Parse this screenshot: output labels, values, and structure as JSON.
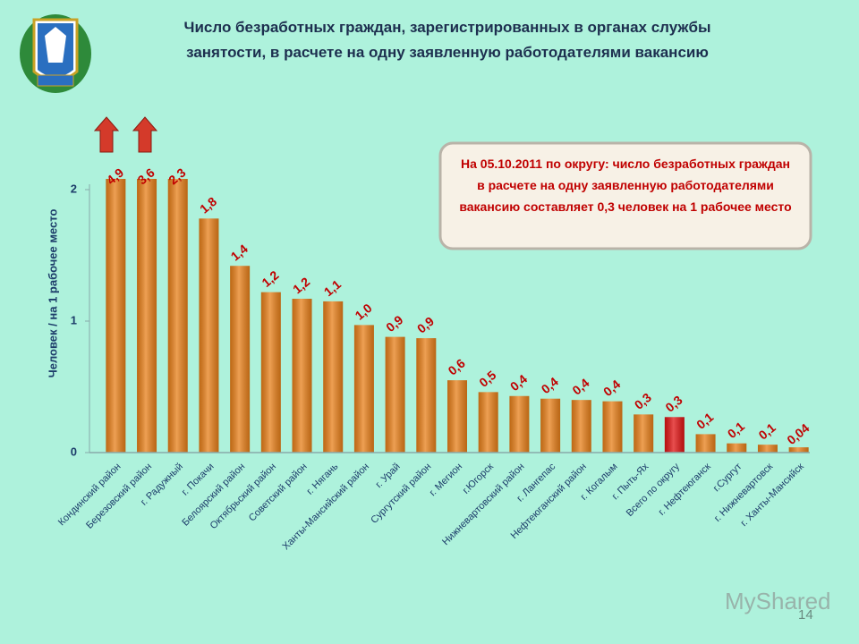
{
  "chart_data": {
    "type": "bar",
    "title": "Число безработных  граждан, зарегистрированных в органах службы занятости, в расчете на одну заявленную работодателями вакансию",
    "y_label": "Человек / на 1 рабочее место",
    "annotation": "На 05.10.2011 по округу: число безработных граждан в расчете на одну заявленную работодателями вакансию составляет 0,3 человек на 1 рабочее место",
    "categories": [
      "Кондинский район",
      "Березовский район",
      "г. Радужный",
      "г. Покачи",
      "Белоярский район",
      "Октябрьский район",
      "Советский район",
      "г. Нягань",
      "Ханты-Мансийский район",
      "г. Урай",
      "Сургутский район",
      "г. Мегион",
      "г.Югорск",
      "Нижневартовский район",
      "г. Лангепас",
      "Нефтеюганский район",
      "г. Когалым",
      "г. Пыть-Ях",
      "Всего по округу",
      "г. Нефтеюганск",
      "г.Сургут",
      "г. Нижневартовск",
      "г. Ханты-Мансийск"
    ],
    "values": [
      4.9,
      3.6,
      2.3,
      1.78,
      1.42,
      1.22,
      1.17,
      1.15,
      0.97,
      0.88,
      0.87,
      0.55,
      0.46,
      0.43,
      0.41,
      0.4,
      0.39,
      0.29,
      0.27,
      0.14,
      0.07,
      0.06,
      0.04
    ],
    "value_labels": [
      "4,9",
      "3,6",
      "2,3",
      "1,8",
      "1,4",
      "1,2",
      "1,2",
      "1,1",
      "1,0",
      "0,9",
      "0,9",
      "0,6",
      "0,5",
      "0,4",
      "0,4",
      "0,4",
      "0,4",
      "0,3",
      "0,3",
      "0,1",
      "0,1",
      "0,1",
      "0,04"
    ],
    "colors": [
      "#e8801a",
      "#e8801a",
      "#e8801a",
      "#e8801a",
      "#e8801a",
      "#e8801a",
      "#e8801a",
      "#e8801a",
      "#e8801a",
      "#e8801a",
      "#e8801a",
      "#e8801a",
      "#e8801a",
      "#e8801a",
      "#e8801a",
      "#e8801a",
      "#e8801a",
      "#e8801a",
      "#e01414",
      "#e8801a",
      "#e8801a",
      "#e8801a",
      "#e8801a"
    ],
    "ylim": [
      0,
      2
    ],
    "yticks": [
      0,
      1,
      2
    ],
    "watermark": "MyShared",
    "page_number": "14"
  }
}
